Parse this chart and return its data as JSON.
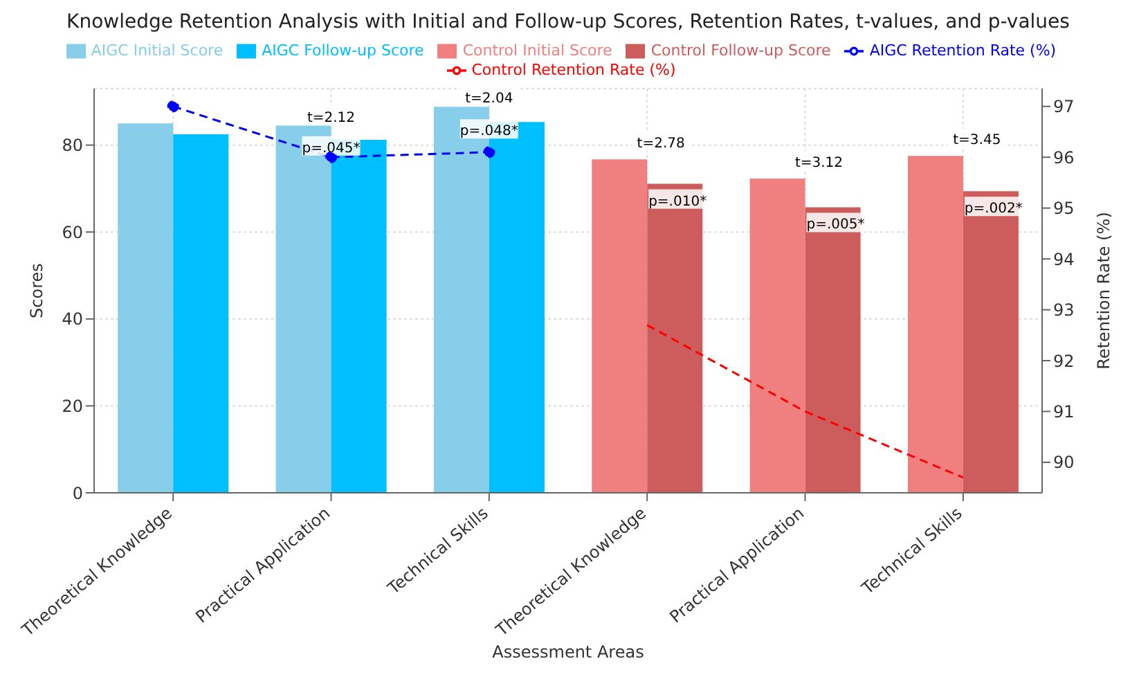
{
  "chart_data": {
    "type": "bar",
    "title": "Knowledge Retention Analysis with Initial and Follow-up Scores, Retention Rates, t-values, and p-values",
    "xlabel": "Assessment Areas",
    "ylabel": "Scores",
    "y2label": "Retention Rate (%)",
    "categories": [
      "Theoretical Knowledge",
      "Practical Application",
      "Technical Skills",
      "Theoretical Knowledge",
      "Practical Application",
      "Technical Skills"
    ],
    "series": [
      {
        "name": "AIGC Initial Score",
        "color": "#87ceeb",
        "values": [
          85,
          84.5,
          88.8,
          null,
          null,
          null
        ]
      },
      {
        "name": "AIGC Follow-up Score",
        "color": "#00bfff",
        "values": [
          82.5,
          81.2,
          85.3,
          null,
          null,
          null
        ]
      },
      {
        "name": "Control Initial Score",
        "color": "#f08080",
        "values": [
          null,
          null,
          null,
          76.7,
          72.3,
          77.5
        ]
      },
      {
        "name": "Control Follow-up Score",
        "color": "#cd5c5c",
        "values": [
          null,
          null,
          null,
          71.1,
          65.7,
          69.4
        ]
      },
      {
        "name": "AIGC Retention Rate (%)",
        "type": "line",
        "axis": "y2",
        "color": "#0000ff",
        "marker": "circle",
        "line_style": "dashed",
        "values": [
          97,
          96,
          96.1,
          null,
          null,
          null
        ]
      },
      {
        "name": "Control Retention Rate (%)",
        "type": "line",
        "axis": "y2",
        "color": "#ff0000",
        "marker": "none",
        "line_style": "dashed",
        "values": [
          null,
          null,
          null,
          92.7,
          91,
          89.7
        ]
      }
    ],
    "annotations": [
      {
        "text": "t=2.12",
        "x": "Practical Application",
        "y": 86.5
      },
      {
        "text": "p=.045*",
        "x": "Practical Application",
        "y": 79.5
      },
      {
        "text": "t=2.04",
        "x": "Technical Skills",
        "y": 91
      },
      {
        "text": "p=.048*",
        "x": "Technical Skills",
        "y": 83.4
      },
      "t=2.78",
      "p=.010*",
      "t=3.12",
      "p=.005*",
      "t=3.45",
      "p=.002*"
    ],
    "ylim": [
      0,
      93
    ],
    "yticks": [
      0,
      20,
      40,
      60,
      80
    ],
    "y2lim": [
      89.4,
      97.35
    ],
    "y2ticks": [
      90,
      91,
      92,
      93,
      94,
      95,
      96,
      97
    ],
    "grid": true,
    "legend": "top"
  }
}
